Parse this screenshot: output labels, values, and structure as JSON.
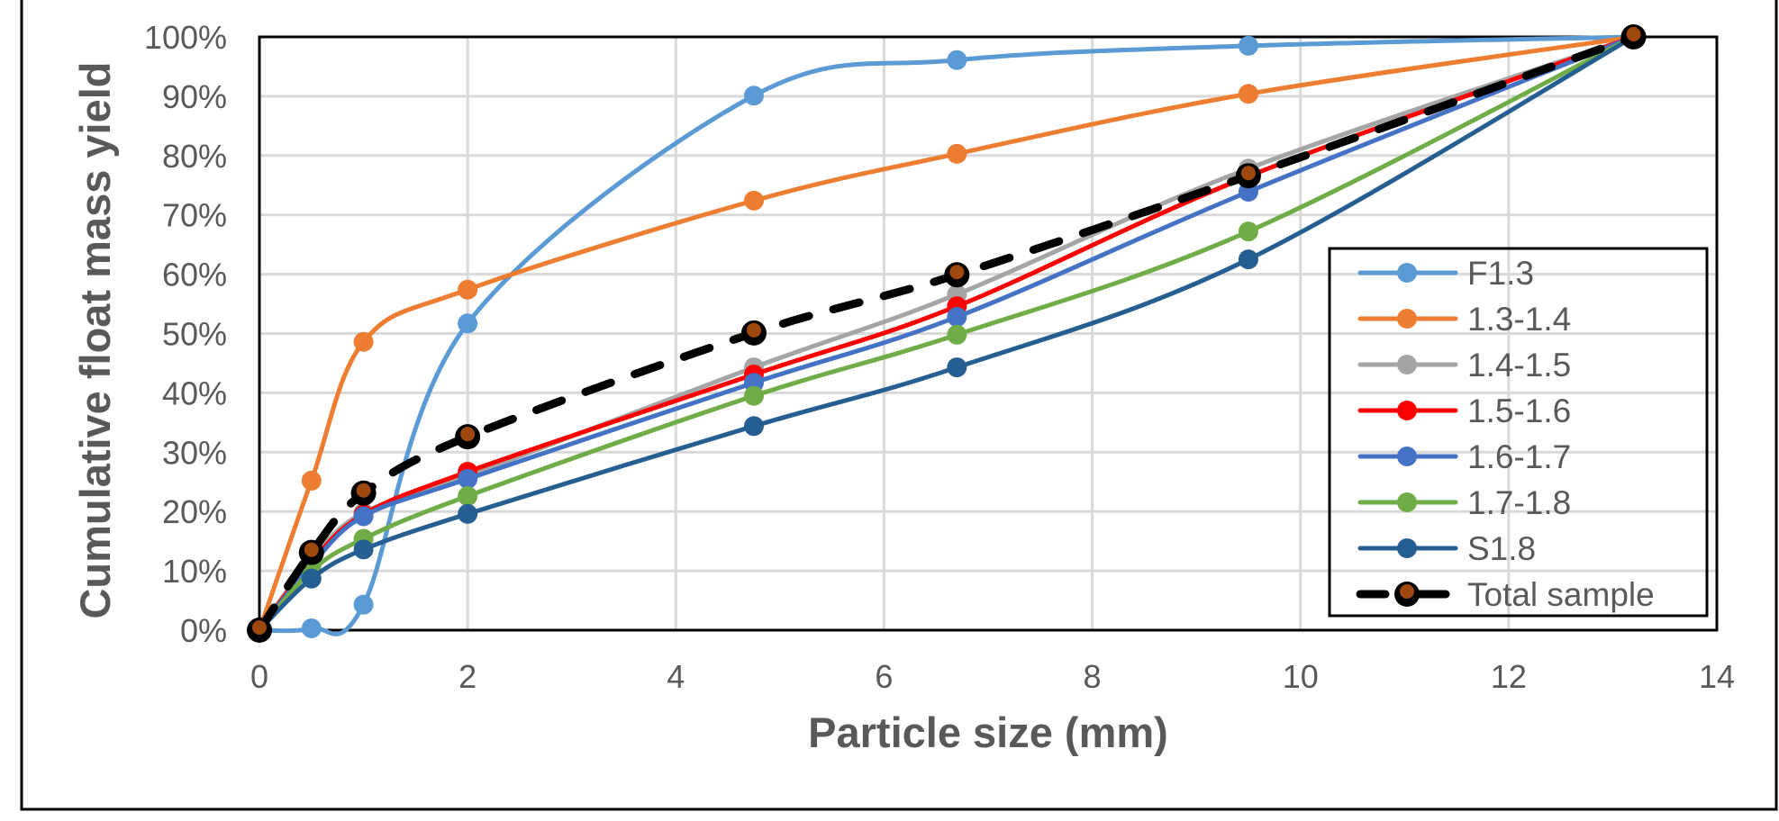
{
  "chart_data": {
    "type": "line",
    "title": "",
    "xlabel": "Particle size (mm)",
    "ylabel": "Cumulative float mass yield",
    "xlim": [
      0,
      14
    ],
    "ylim": [
      0,
      100
    ],
    "x_ticks": [
      "0",
      "2",
      "4",
      "6",
      "8",
      "10",
      "12",
      "14"
    ],
    "y_ticks": [
      "0%",
      "10%",
      "20%",
      "30%",
      "40%",
      "50%",
      "60%",
      "70%",
      "80%",
      "90%",
      "100%"
    ],
    "grid": true,
    "smoothed": true,
    "legend_position": "bottom-right-inside",
    "x": [
      0,
      0.5,
      1,
      2,
      4.75,
      6.7,
      9.5,
      13.2
    ],
    "series": [
      {
        "name": "F1.3",
        "color": "#5B9BD5",
        "values": [
          0,
          0.3,
          4.3,
          51.7,
          90.1,
          96.1,
          98.5,
          100
        ]
      },
      {
        "name": "1.3-1.4",
        "color": "#ED7D31",
        "values": [
          0,
          25.2,
          48.6,
          57.4,
          72.4,
          80.3,
          90.4,
          100
        ]
      },
      {
        "name": "1.4-1.5",
        "color": "#A5A5A5",
        "values": [
          0,
          12.0,
          19.8,
          26.0,
          44.3,
          56.6,
          77.8,
          100
        ]
      },
      {
        "name": "1.5-1.6",
        "color": "#FF0000",
        "values": [
          0,
          11.5,
          19.5,
          26.7,
          43.1,
          54.6,
          76.5,
          100
        ]
      },
      {
        "name": "1.6-1.7",
        "color": "#4472C4",
        "values": [
          0,
          11.0,
          19.2,
          25.5,
          41.7,
          52.8,
          73.9,
          100
        ]
      },
      {
        "name": "1.7-1.8",
        "color": "#70AD47",
        "values": [
          0,
          10.0,
          15.4,
          22.6,
          39.5,
          49.8,
          67.2,
          100
        ]
      },
      {
        "name": "S1.8",
        "color": "#255E91",
        "values": [
          0,
          8.7,
          13.6,
          19.6,
          34.4,
          44.3,
          62.5,
          100
        ]
      },
      {
        "name": "Total sample",
        "color": "#000000",
        "marker_color": "#9E480E",
        "dashed": true,
        "values": [
          0,
          13.1,
          23.1,
          32.6,
          50.1,
          59.9,
          76.6,
          100
        ]
      }
    ]
  }
}
